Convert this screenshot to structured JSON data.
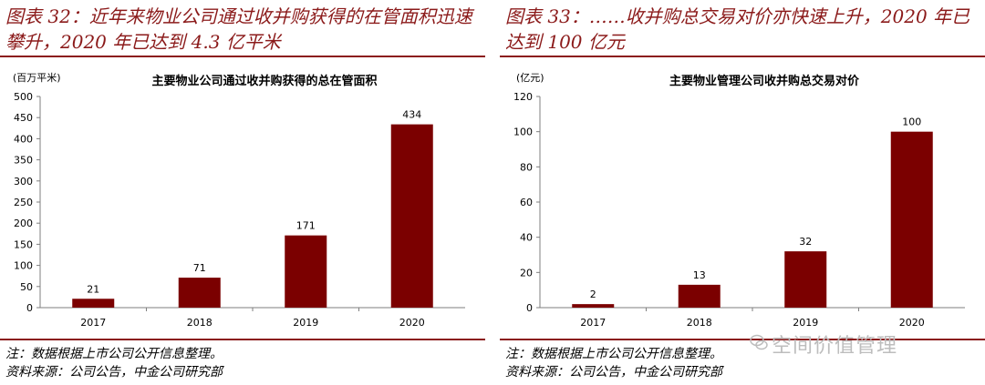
{
  "left": {
    "heading": "图表 32：近年来物业公司通过收并购获得的在管面积迅速攀升，2020 年已达到 4.3 亿平米",
    "unit": "(百万平米)",
    "note": "注：数据根据上市公司公开信息整理。",
    "source": "资料来源：公司公告，中金公司研究部"
  },
  "right": {
    "heading": "图表 33：……收并购总交易对价亦快速上升，2020 年已达到 100 亿元",
    "unit": "(亿元)",
    "note": "注：数据根据上市公司公开信息整理。",
    "source": "资料来源：公司公告，中金公司研究部"
  },
  "watermark": "空间价值管理",
  "colors": {
    "bar": "#7b0000",
    "heading": "#8b1a1a",
    "rule": "#8b1a1a"
  },
  "chart_data": [
    {
      "type": "bar",
      "title": "主要物业公司通过收并购获得的总在管面积",
      "ylabel": "(百万平米)",
      "categories": [
        "2017",
        "2018",
        "2019",
        "2020"
      ],
      "values": [
        21,
        71,
        171,
        434
      ],
      "ylim": [
        0,
        500
      ],
      "yticks": [
        0,
        50,
        100,
        150,
        200,
        250,
        300,
        350,
        400,
        450,
        500
      ],
      "grid": false,
      "legend": "none"
    },
    {
      "type": "bar",
      "title": "主要物业管理公司收并购总交易对价",
      "ylabel": "(亿元)",
      "categories": [
        "2017",
        "2018",
        "2019",
        "2020"
      ],
      "values": [
        2,
        13,
        32,
        100
      ],
      "ylim": [
        0,
        120
      ],
      "yticks": [
        0,
        20,
        40,
        60,
        80,
        100,
        120
      ],
      "grid": false,
      "legend": "none"
    }
  ]
}
